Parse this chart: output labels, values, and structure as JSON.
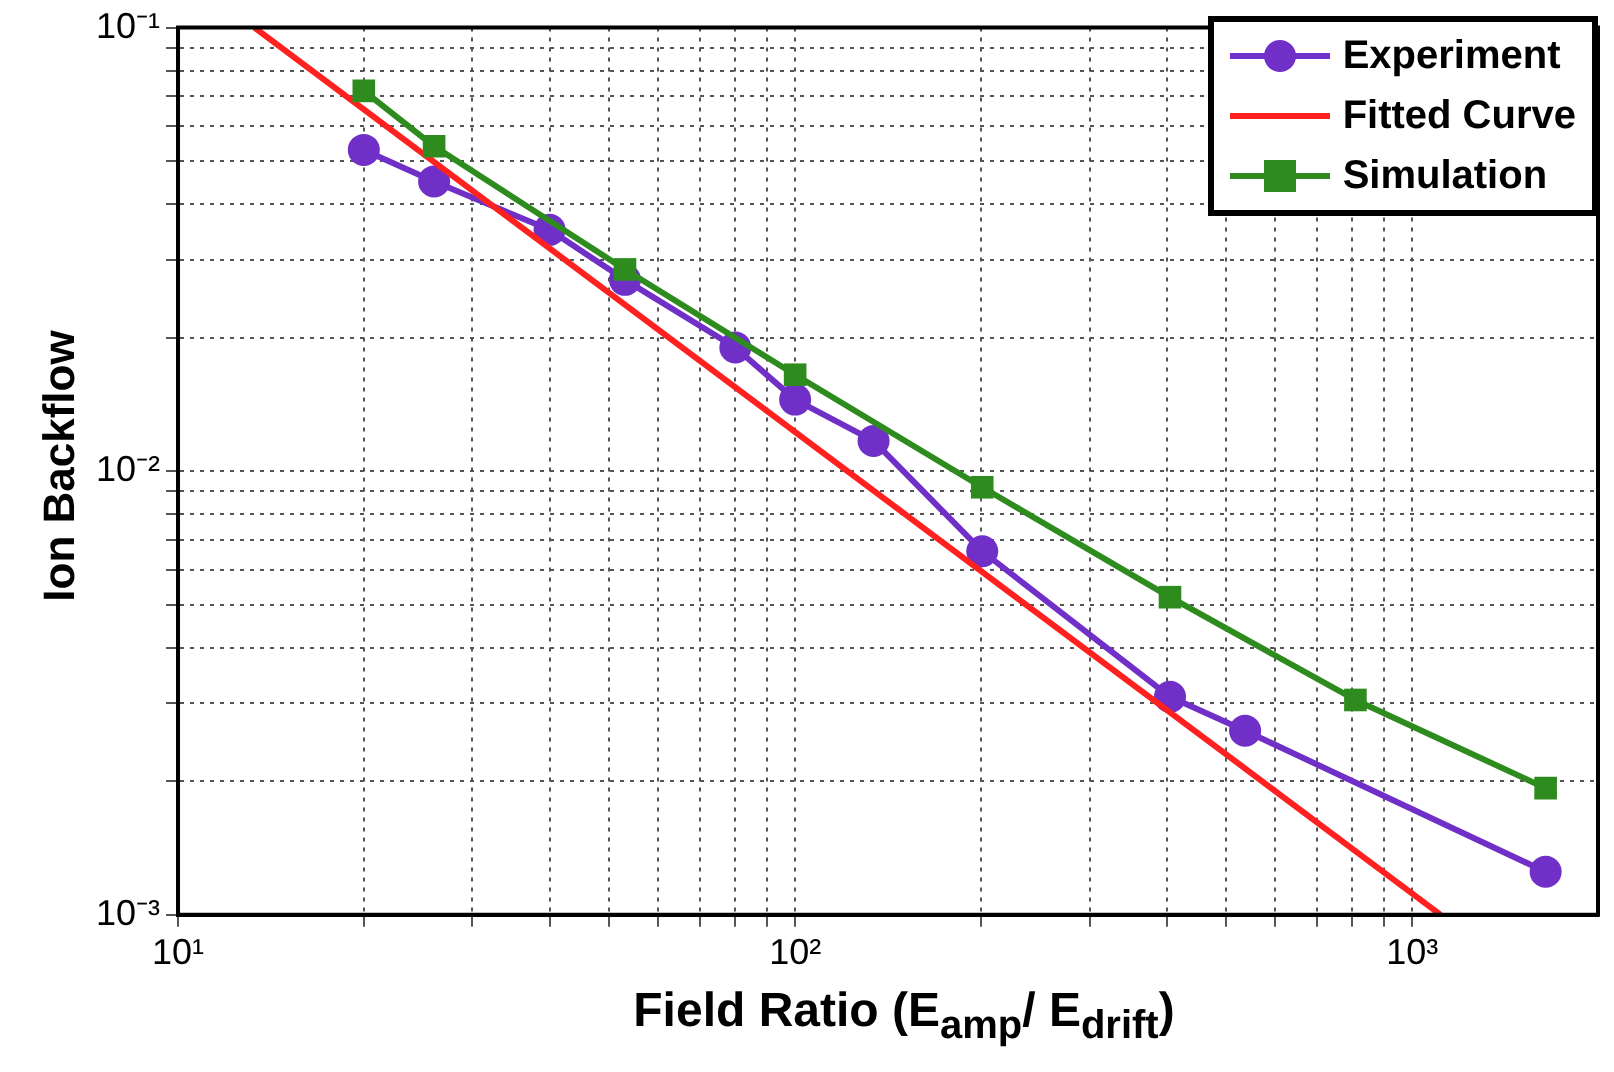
{
  "chart_data": {
    "type": "line",
    "xlabel": "Field Ratio (E$_{amp}$/ E$_{drift}$)",
    "ylabel": "Ion Backflow",
    "log": "xy",
    "grid": true,
    "legend": "top right",
    "xlim": [
      10,
      2000
    ],
    "ylim": [
      0.001,
      0.1
    ],
    "xticks": [
      {
        "value": 10,
        "label": "10¹"
      },
      {
        "value": 20,
        "label": null
      },
      {
        "value": 30,
        "label": null
      },
      {
        "value": 40,
        "label": null
      },
      {
        "value": 50,
        "label": null
      },
      {
        "value": 60,
        "label": null
      },
      {
        "value": 70,
        "label": null
      },
      {
        "value": 80,
        "label": null
      },
      {
        "value": 90,
        "label": null
      },
      {
        "value": 100,
        "label": "10²"
      },
      {
        "value": 200,
        "label": null
      },
      {
        "value": 300,
        "label": null
      },
      {
        "value": 400,
        "label": null
      },
      {
        "value": 500,
        "label": null
      },
      {
        "value": 600,
        "label": null
      },
      {
        "value": 700,
        "label": null
      },
      {
        "value": 800,
        "label": null
      },
      {
        "value": 900,
        "label": null
      },
      {
        "value": 1000,
        "label": "10³"
      }
    ],
    "yticks": [
      {
        "value": 0.001,
        "label": "10⁻³"
      },
      {
        "value": 0.002,
        "label": null
      },
      {
        "value": 0.003,
        "label": null
      },
      {
        "value": 0.004,
        "label": null
      },
      {
        "value": 0.005,
        "label": null
      },
      {
        "value": 0.006,
        "label": null
      },
      {
        "value": 0.007,
        "label": null
      },
      {
        "value": 0.008,
        "label": null
      },
      {
        "value": 0.009,
        "label": null
      },
      {
        "value": 0.01,
        "label": "10⁻²"
      },
      {
        "value": 0.02,
        "label": null
      },
      {
        "value": 0.03,
        "label": null
      },
      {
        "value": 0.04,
        "label": null
      },
      {
        "value": 0.05,
        "label": null
      },
      {
        "value": 0.06,
        "label": null
      },
      {
        "value": 0.07,
        "label": null
      },
      {
        "value": 0.08,
        "label": null
      },
      {
        "value": 0.09,
        "label": null
      },
      {
        "value": 0.1,
        "label": "10⁻¹"
      }
    ],
    "series": [
      {
        "name": "Experiment",
        "color": "#7030c8",
        "marker": "circle",
        "x": [
          20,
          26,
          40,
          53,
          80,
          100,
          134,
          201,
          405,
          536,
          1645
        ],
        "values": [
          0.053,
          0.045,
          0.035,
          0.027,
          0.019,
          0.0145,
          0.0117,
          0.0066,
          0.0031,
          0.0026,
          0.00125
        ]
      },
      {
        "name": "Fitted Curve",
        "color": "#ff2020",
        "marker": "none",
        "x": [
          13.3,
          1112
        ],
        "values": [
          0.1,
          0.001
        ]
      },
      {
        "name": "Simulation",
        "color": "#2e8b1e",
        "marker": "square",
        "x": [
          20,
          26,
          53,
          100,
          201,
          405,
          809,
          1645
        ],
        "values": [
          0.072,
          0.054,
          0.0285,
          0.0165,
          0.0092,
          0.0052,
          0.00305,
          0.00193
        ]
      }
    ]
  }
}
